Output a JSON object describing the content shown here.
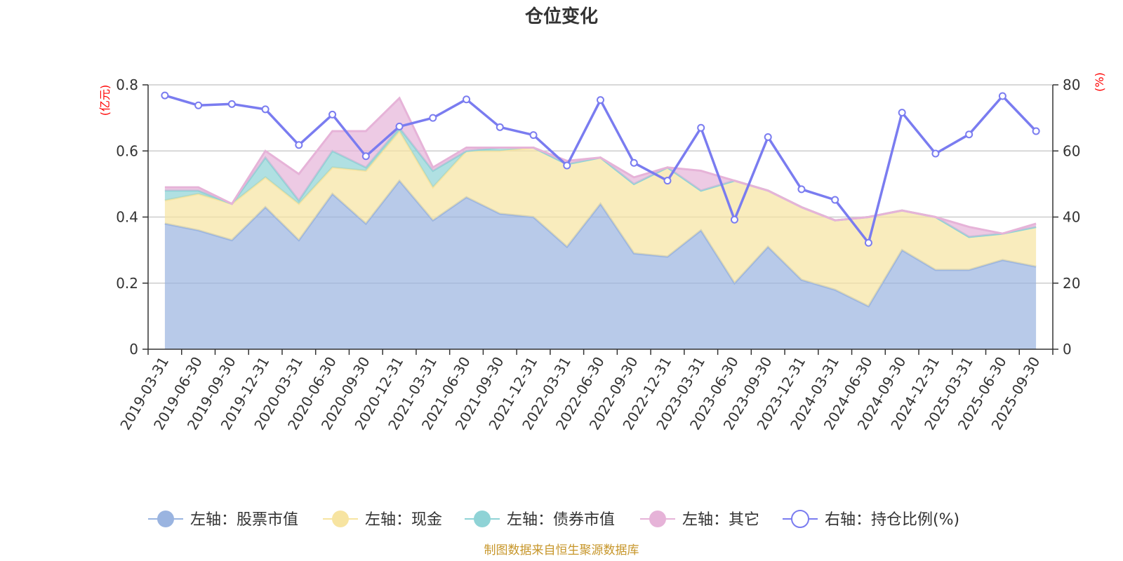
{
  "chart_data": {
    "type": "area",
    "title": "仓位变化",
    "source": "制图数据来自恒生聚源数据库",
    "left_unit": "(亿元)",
    "right_unit": "(%)",
    "left_ylim": [
      0,
      0.8
    ],
    "left_ticks": [
      "0",
      "0.2",
      "0.4",
      "0.6",
      "0.8"
    ],
    "right_ylim": [
      0,
      80
    ],
    "right_ticks": [
      "0",
      "20",
      "40",
      "60",
      "80"
    ],
    "categories": [
      "2019-03-31",
      "2019-06-30",
      "2019-09-30",
      "2019-12-31",
      "2020-03-31",
      "2020-06-30",
      "2020-09-30",
      "2020-12-31",
      "2021-03-31",
      "2021-06-30",
      "2021-09-30",
      "2021-12-31",
      "2022-03-31",
      "2022-06-30",
      "2022-09-30",
      "2022-12-31",
      "2023-03-31",
      "2023-06-30",
      "2023-09-30",
      "2023-12-31",
      "2024-03-31",
      "2024-06-30",
      "2024-09-30",
      "2024-12-31",
      "2025-03-31",
      "2025-06-30",
      "2025-09-30"
    ],
    "series": [
      {
        "name": "左轴：股票市值",
        "axis": "left",
        "color": "#9ab4e0",
        "values": [
          0.38,
          0.36,
          0.33,
          0.43,
          0.33,
          0.47,
          0.38,
          0.51,
          0.39,
          0.46,
          0.41,
          0.4,
          0.31,
          0.44,
          0.29,
          0.28,
          0.36,
          0.2,
          0.31,
          0.21,
          0.18,
          0.13,
          0.3,
          0.24,
          0.24,
          0.27,
          0.25
        ]
      },
      {
        "name": "左轴：现金",
        "axis": "left",
        "color": "#f7e4a1",
        "values": [
          0.07,
          0.11,
          0.11,
          0.09,
          0.11,
          0.08,
          0.16,
          0.15,
          0.1,
          0.14,
          0.19,
          0.21,
          0.25,
          0.14,
          0.21,
          0.27,
          0.12,
          0.31,
          0.17,
          0.22,
          0.21,
          0.27,
          0.12,
          0.16,
          0.1,
          0.08,
          0.12
        ]
      },
      {
        "name": "左轴：债券市值",
        "axis": "left",
        "color": "#8fd3d6",
        "values": [
          0.03,
          0.01,
          0.0,
          0.06,
          0.01,
          0.05,
          0.01,
          0.01,
          0.05,
          0.0,
          0.01,
          0.0,
          0.0,
          0.0,
          0.0,
          0.0,
          0.0,
          0.0,
          0.0,
          0.0,
          0.0,
          0.0,
          0.0,
          0.0,
          0.0,
          0.0,
          0.0
        ]
      },
      {
        "name": "左轴：其它",
        "axis": "left",
        "color": "#e6b3d8",
        "values": [
          0.01,
          0.01,
          0.0,
          0.02,
          0.08,
          0.06,
          0.11,
          0.09,
          0.01,
          0.01,
          0.0,
          0.0,
          0.01,
          0.0,
          0.02,
          0.0,
          0.06,
          0.0,
          0.0,
          0.0,
          0.0,
          0.0,
          0.0,
          0.0,
          0.03,
          0.0,
          0.01
        ]
      },
      {
        "name": "右轴：持仓比例(%)",
        "axis": "right",
        "color": "#7a7cf0",
        "values": [
          76.8,
          73.8,
          74.2,
          72.6,
          61.8,
          71.0,
          58.4,
          67.4,
          70.0,
          75.6,
          67.2,
          64.8,
          55.6,
          75.4,
          56.4,
          51.0,
          67.0,
          39.2,
          64.2,
          48.4,
          45.2,
          32.2,
          71.6,
          59.2,
          65.0,
          76.6,
          66.0
        ]
      }
    ]
  }
}
